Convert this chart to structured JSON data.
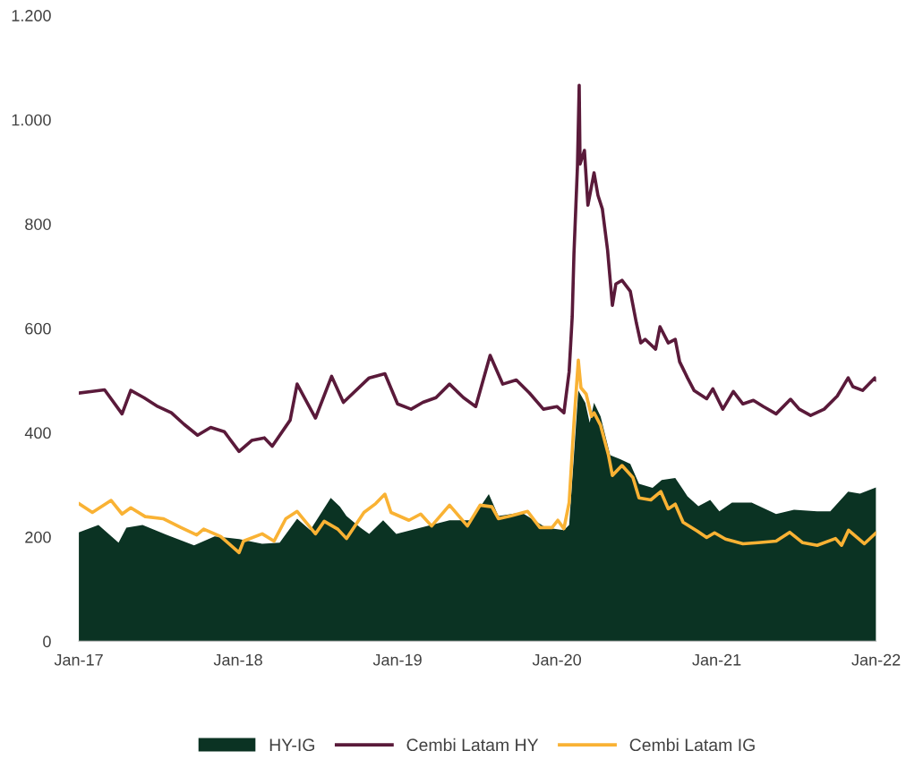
{
  "chart_data": {
    "type": "line",
    "xlim": [
      "2017-01-01",
      "2022-01-01"
    ],
    "xticks": [
      {
        "value": "2017-01-01",
        "label": "Jan-17"
      },
      {
        "value": "2018-01-01",
        "label": "Jan-18"
      },
      {
        "value": "2019-01-01",
        "label": "Jan-19"
      },
      {
        "value": "2020-01-01",
        "label": "Jan-20"
      },
      {
        "value": "2021-01-01",
        "label": "Jan-21"
      },
      {
        "value": "2022-01-01",
        "label": "Jan-22"
      }
    ],
    "ylim": [
      0,
      1200
    ],
    "yticks": [
      0,
      200,
      400,
      600,
      800,
      {
        "value": 1000,
        "label": "1.000"
      },
      {
        "value": 1200,
        "label": "1.200"
      }
    ],
    "grid": false,
    "legend": "bottom",
    "series": [
      {
        "name": "HY-IG",
        "type": "area",
        "color": "#0b3323",
        "x": [
          "2017-01-01",
          "2017-02-15",
          "2017-04-02",
          "2017-04-20",
          "2017-05-27",
          "2017-07-21",
          "2017-09-22",
          "2017-11-08",
          "2018-01-03",
          "2018-02-25",
          "2018-04-06",
          "2018-05-16",
          "2018-06-15",
          "2018-08-01",
          "2018-08-22",
          "2018-09-06",
          "2018-10-08",
          "2018-10-28",
          "2018-11-29",
          "2018-12-29",
          "2019-02-23",
          "2019-04-30",
          "2019-06-19",
          "2019-07-29",
          "2019-08-20",
          "2019-10-12",
          "2019-12-07",
          "2020-01-17",
          "2020-01-29",
          "2020-02-09",
          "2020-02-19",
          "2020-03-06",
          "2020-03-16",
          "2020-03-26",
          "2020-04-10",
          "2020-05-02",
          "2020-05-25",
          "2020-06-17",
          "2020-07-07",
          "2020-08-07",
          "2020-08-28",
          "2020-09-28",
          "2020-10-26",
          "2020-11-20",
          "2020-12-17",
          "2021-01-07",
          "2021-02-05",
          "2021-03-22",
          "2021-05-17",
          "2021-06-27",
          "2021-08-19",
          "2021-09-18",
          "2021-10-29",
          "2021-11-25",
          "2022-01-01"
        ],
        "values": [
          209,
          223,
          189,
          218,
          223,
          204,
          184,
          201,
          196,
          187,
          189,
          235,
          213,
          275,
          258,
          240,
          218,
          206,
          232,
          206,
          218,
          232,
          232,
          282,
          240,
          247,
          218,
          213,
          223,
          357,
          481,
          457,
          419,
          457,
          431,
          357,
          349,
          340,
          302,
          294,
          309,
          313,
          278,
          259,
          271,
          249,
          266,
          266,
          244,
          252,
          249,
          249,
          287,
          283,
          295
        ]
      },
      {
        "name": "Cembi Latam HY",
        "color": "#5a1a3a",
        "x": [
          "2017-01-01",
          "2017-02-01",
          "2017-03-01",
          "2017-04-10",
          "2017-04-30",
          "2017-05-30",
          "2017-07-01",
          "2017-08-01",
          "2017-08-30",
          "2017-09-30",
          "2017-10-30",
          "2017-11-30",
          "2018-01-03",
          "2018-02-01",
          "2018-03-02",
          "2018-03-20",
          "2018-04-30",
          "2018-05-16",
          "2018-06-27",
          "2018-08-03",
          "2018-08-30",
          "2018-10-28",
          "2018-12-03",
          "2019-01-01",
          "2019-02-01",
          "2019-02-28",
          "2019-03-30",
          "2019-04-30",
          "2019-06-01",
          "2019-06-29",
          "2019-08-01",
          "2019-08-30",
          "2019-09-30",
          "2019-10-30",
          "2019-12-01",
          "2020-01-01",
          "2020-01-17",
          "2020-01-29",
          "2020-02-05",
          "2020-02-09",
          "2020-02-17",
          "2020-02-21",
          "2020-02-23",
          "2020-03-04",
          "2020-03-12",
          "2020-03-26",
          "2020-04-04",
          "2020-04-14",
          "2020-04-26",
          "2020-05-07",
          "2020-05-15",
          "2020-05-29",
          "2020-06-17",
          "2020-07-01",
          "2020-07-11",
          "2020-07-21",
          "2020-08-14",
          "2020-08-24",
          "2020-09-12",
          "2020-09-28",
          "2020-10-08",
          "2020-10-26",
          "2020-11-10",
          "2020-12-09",
          "2020-12-23",
          "2021-01-15",
          "2021-02-08",
          "2021-03-02",
          "2021-03-26",
          "2021-04-18",
          "2021-05-17",
          "2021-06-19",
          "2021-07-09",
          "2021-08-04",
          "2021-09-04",
          "2021-10-04",
          "2021-10-29",
          "2021-11-09",
          "2021-12-01",
          "2021-12-29",
          "2022-01-01"
        ],
        "values": [
          476,
          479,
          482,
          436,
          481,
          467,
          450,
          438,
          416,
          395,
          410,
          402,
          364,
          385,
          390,
          374,
          424,
          493,
          428,
          508,
          458,
          505,
          513,
          455,
          445,
          458,
          467,
          493,
          467,
          450,
          548,
          493,
          501,
          476,
          445,
          450,
          438,
          517,
          622,
          743,
          910,
          1066,
          915,
          941,
          836,
          898,
          855,
          829,
          750,
          644,
          685,
          692,
          671,
          610,
          572,
          579,
          560,
          603,
          572,
          579,
          536,
          505,
          481,
          465,
          484,
          445,
          479,
          455,
          462,
          450,
          436,
          464,
          445,
          433,
          445,
          470,
          505,
          488,
          481,
          505,
          501
        ]
      },
      {
        "name": "Cembi Latam IG",
        "color": "#f9b234",
        "x": [
          "2017-01-01",
          "2017-02-01",
          "2017-03-16",
          "2017-04-10",
          "2017-04-30",
          "2017-06-02",
          "2017-07-13",
          "2017-08-23",
          "2017-09-28",
          "2017-10-14",
          "2017-11-22",
          "2018-01-03",
          "2018-01-13",
          "2018-02-25",
          "2018-03-24",
          "2018-04-20",
          "2018-05-16",
          "2018-06-27",
          "2018-07-17",
          "2018-08-17",
          "2018-09-06",
          "2018-10-16",
          "2018-11-12",
          "2018-12-03",
          "2018-12-17",
          "2019-01-27",
          "2019-02-23",
          "2019-03-20",
          "2019-04-30",
          "2019-06-10",
          "2019-07-09",
          "2019-08-05",
          "2019-08-20",
          "2019-09-16",
          "2019-10-26",
          "2019-11-23",
          "2019-12-21",
          "2020-01-03",
          "2020-01-17",
          "2020-01-29",
          "2020-02-09",
          "2020-02-19",
          "2020-02-25",
          "2020-03-08",
          "2020-03-20",
          "2020-03-26",
          "2020-04-10",
          "2020-04-28",
          "2020-05-07",
          "2020-05-29",
          "2020-06-23",
          "2020-07-07",
          "2020-08-03",
          "2020-08-26",
          "2020-09-12",
          "2020-09-28",
          "2020-10-16",
          "2020-11-18",
          "2020-12-09",
          "2020-12-27",
          "2021-01-21",
          "2021-03-02",
          "2021-04-06",
          "2021-05-17",
          "2021-06-17",
          "2021-07-17",
          "2021-08-19",
          "2021-09-30",
          "2021-10-14",
          "2021-10-30",
          "2021-12-05",
          "2022-01-01"
        ],
        "values": [
          264,
          247,
          270,
          244,
          256,
          239,
          235,
          218,
          204,
          215,
          201,
          170,
          192,
          206,
          192,
          235,
          249,
          206,
          230,
          215,
          197,
          247,
          264,
          282,
          247,
          232,
          244,
          221,
          261,
          221,
          261,
          258,
          235,
          240,
          249,
          218,
          218,
          232,
          216,
          266,
          419,
          539,
          486,
          474,
          431,
          438,
          414,
          357,
          318,
          337,
          314,
          275,
          271,
          287,
          254,
          263,
          228,
          211,
          199,
          208,
          196,
          187,
          189,
          192,
          209,
          189,
          184,
          197,
          184,
          213,
          187,
          208
        ]
      }
    ]
  }
}
